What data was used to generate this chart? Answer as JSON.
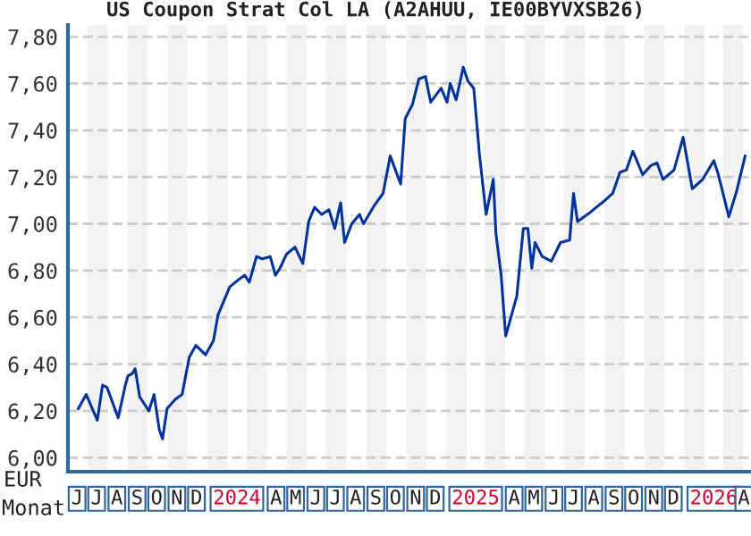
{
  "chart_data": {
    "type": "line",
    "title": "US Coupon Strat Col LA (A2AHUU, IE00BYVXSB26)",
    "ylabel": "EUR",
    "xlabel": "Monat",
    "x": [
      "2023-06-17",
      "2023-06-29",
      "2023-07-16",
      "2023-07-24",
      "2023-07-31",
      "2023-08-17",
      "2023-08-28",
      "2023-09-01",
      "2023-09-08",
      "2023-09-12",
      "2023-09-19",
      "2023-10-03",
      "2023-10-11",
      "2023-10-19",
      "2023-10-24",
      "2023-10-31",
      "2023-11-13",
      "2023-11-23",
      "2023-12-04",
      "2023-12-14",
      "2023-12-29",
      "2024-01-10",
      "2024-01-17",
      "2024-01-26",
      "2024-02-04",
      "2024-02-17",
      "2024-02-27",
      "2024-03-05",
      "2024-03-16",
      "2024-03-25",
      "2024-04-06",
      "2024-04-14",
      "2024-04-21",
      "2024-05-01",
      "2024-05-14",
      "2024-05-26",
      "2024-06-04",
      "2024-06-13",
      "2024-06-24",
      "2024-07-05",
      "2024-07-14",
      "2024-07-23",
      "2024-07-29",
      "2024-08-09",
      "2024-08-21",
      "2024-08-27",
      "2024-09-13",
      "2024-09-26",
      "2024-10-07",
      "2024-10-23",
      "2024-10-30",
      "2024-11-10",
      "2024-11-20",
      "2024-11-30",
      "2024-12-08",
      "2024-12-24",
      "2025-01-02",
      "2025-01-07",
      "2025-01-16",
      "2025-01-27",
      "2025-02-03",
      "2025-02-12",
      "2025-02-21",
      "2025-03-03",
      "2025-03-14",
      "2025-03-18",
      "2025-03-26",
      "2025-04-02",
      "2025-04-08",
      "2025-04-19",
      "2025-04-29",
      "2025-05-06",
      "2025-05-12",
      "2025-05-17",
      "2025-05-28",
      "2025-06-11",
      "2025-06-25",
      "2025-07-09",
      "2025-07-15",
      "2025-07-21",
      "2025-08-10",
      "2025-08-23",
      "2025-09-01",
      "2025-09-13",
      "2025-09-24",
      "2025-10-04",
      "2025-10-14",
      "2025-10-29",
      "2025-11-11",
      "2025-11-20",
      "2025-11-29",
      "2025-12-16",
      "2025-12-30",
      "2026-01-13",
      "2026-01-29",
      "2026-02-15",
      "2026-02-22",
      "2026-03-10",
      "2026-03-22",
      "2026-04-04"
    ],
    "series": [
      {
        "color": "#003399",
        "values": [
          6.21,
          6.27,
          6.16,
          6.31,
          6.3,
          6.17,
          6.31,
          6.35,
          6.36,
          6.38,
          6.26,
          6.2,
          6.27,
          6.12,
          6.08,
          6.21,
          6.25,
          6.27,
          6.43,
          6.48,
          6.44,
          6.5,
          6.61,
          6.67,
          6.73,
          6.76,
          6.78,
          6.75,
          6.86,
          6.85,
          6.86,
          6.78,
          6.81,
          6.87,
          6.9,
          6.83,
          7.01,
          7.07,
          7.04,
          7.06,
          6.98,
          7.09,
          6.92,
          7.0,
          7.04,
          7.0,
          7.08,
          7.13,
          7.29,
          7.17,
          7.45,
          7.51,
          7.62,
          7.63,
          7.52,
          7.58,
          7.52,
          7.6,
          7.53,
          7.67,
          7.61,
          7.58,
          7.29,
          7.04,
          7.19,
          6.96,
          6.78,
          6.52,
          6.58,
          6.69,
          6.98,
          6.98,
          6.81,
          6.92,
          6.86,
          6.84,
          6.92,
          6.93,
          7.13,
          7.01,
          7.05,
          7.08,
          7.1,
          7.13,
          7.22,
          7.23,
          7.31,
          7.21,
          7.25,
          7.26,
          7.19,
          7.23,
          7.37,
          7.15,
          7.19,
          7.27,
          7.21,
          7.03,
          7.14,
          7.29
        ]
      }
    ],
    "xlim": [
      "2023-06-01",
      "2026-04-13"
    ],
    "xticks": [
      {
        "value": "2023-06-15",
        "label": "J"
      },
      {
        "value": "2023-07-15",
        "label": "J"
      },
      {
        "value": "2023-08-15",
        "label": "A"
      },
      {
        "value": "2023-09-15",
        "label": "S"
      },
      {
        "value": "2023-10-15",
        "label": "O"
      },
      {
        "value": "2023-11-15",
        "label": "N"
      },
      {
        "value": "2023-12-15",
        "label": "D"
      },
      {
        "value": "2024-02-15",
        "label": "2024"
      },
      {
        "value": "2024-04-15",
        "label": "A"
      },
      {
        "value": "2024-05-15",
        "label": "M"
      },
      {
        "value": "2024-06-15",
        "label": "J"
      },
      {
        "value": "2024-07-15",
        "label": "J"
      },
      {
        "value": "2024-08-15",
        "label": "A"
      },
      {
        "value": "2024-09-15",
        "label": "S"
      },
      {
        "value": "2024-10-15",
        "label": "O"
      },
      {
        "value": "2024-11-15",
        "label": "N"
      },
      {
        "value": "2024-12-15",
        "label": "D"
      },
      {
        "value": "2025-02-15",
        "label": "2025"
      },
      {
        "value": "2025-04-15",
        "label": "A"
      },
      {
        "value": "2025-05-15",
        "label": "M"
      },
      {
        "value": "2025-06-15",
        "label": "J"
      },
      {
        "value": "2025-07-15",
        "label": "J"
      },
      {
        "value": "2025-08-15",
        "label": "A"
      },
      {
        "value": "2025-09-15",
        "label": "S"
      },
      {
        "value": "2025-10-15",
        "label": "O"
      },
      {
        "value": "2025-11-15",
        "label": "N"
      },
      {
        "value": "2025-12-15",
        "label": "D"
      },
      {
        "value": "2026-02-15",
        "label": "2026"
      },
      {
        "value": "2026-04-02",
        "label": "A"
      }
    ],
    "ylim": [
      5.94,
      7.85
    ],
    "yticks": [
      {
        "value": 6.0,
        "label": "6,00"
      },
      {
        "value": 6.2,
        "label": "6,20"
      },
      {
        "value": 6.4,
        "label": "6,40"
      },
      {
        "value": 6.6,
        "label": "6,60"
      },
      {
        "value": 6.8,
        "label": "6,80"
      },
      {
        "value": 7.0,
        "label": "7,00"
      },
      {
        "value": 7.2,
        "label": "7,20"
      },
      {
        "value": 7.4,
        "label": "7,40"
      },
      {
        "value": 7.6,
        "label": "7,60"
      },
      {
        "value": 7.8,
        "label": "7,80"
      }
    ],
    "grid": "y",
    "line_style": "solid",
    "marker": "none",
    "legend": false,
    "bands": [
      {
        "axis": "x",
        "from": "2023-07-01",
        "to": "2023-08-01",
        "color": "#f2f2f2"
      },
      {
        "axis": "x",
        "from": "2023-09-01",
        "to": "2023-10-01",
        "color": "#f2f2f2"
      },
      {
        "axis": "x",
        "from": "2023-11-01",
        "to": "2023-12-01",
        "color": "#f2f2f2"
      },
      {
        "axis": "x",
        "from": "2024-01-01",
        "to": "2024-02-01",
        "color": "#f2f2f2"
      },
      {
        "axis": "x",
        "from": "2024-03-01",
        "to": "2024-04-01",
        "color": "#f2f2f2"
      },
      {
        "axis": "x",
        "from": "2024-05-01",
        "to": "2024-06-01",
        "color": "#f2f2f2"
      },
      {
        "axis": "x",
        "from": "2024-07-01",
        "to": "2024-08-01",
        "color": "#f2f2f2"
      },
      {
        "axis": "x",
        "from": "2024-09-01",
        "to": "2024-10-01",
        "color": "#f2f2f2"
      },
      {
        "axis": "x",
        "from": "2024-11-01",
        "to": "2024-12-01",
        "color": "#f2f2f2"
      },
      {
        "axis": "x",
        "from": "2025-01-01",
        "to": "2025-02-01",
        "color": "#f2f2f2"
      },
      {
        "axis": "x",
        "from": "2025-03-01",
        "to": "2025-04-01",
        "color": "#f2f2f2"
      },
      {
        "axis": "x",
        "from": "2025-05-01",
        "to": "2025-06-01",
        "color": "#f2f2f2"
      },
      {
        "axis": "x",
        "from": "2025-07-01",
        "to": "2025-08-01",
        "color": "#f2f2f2"
      },
      {
        "axis": "x",
        "from": "2025-09-01",
        "to": "2025-10-01",
        "color": "#f2f2f2"
      },
      {
        "axis": "x",
        "from": "2025-11-01",
        "to": "2025-12-01",
        "color": "#f2f2f2"
      },
      {
        "axis": "x",
        "from": "2026-01-01",
        "to": "2026-02-01",
        "color": "#f2f2f2"
      },
      {
        "axis": "x",
        "from": "2026-03-01",
        "to": "2026-04-01",
        "color": "#f2f2f2"
      }
    ]
  }
}
